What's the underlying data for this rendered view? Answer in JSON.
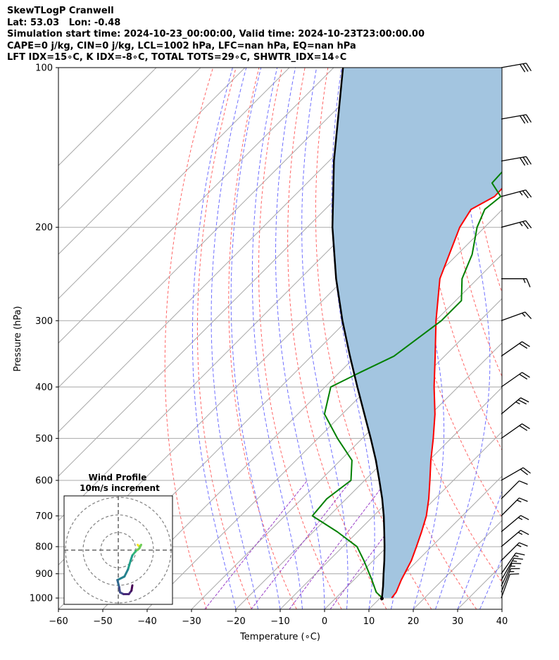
{
  "header": {
    "line1": "SkewTLogP Cranwell",
    "line2": "Lat: 53.03   Lon: -0.48",
    "line3": "Simulation start time: 2024-10-23_00:00:00, Valid time: 2024-10-23T23:00:00.00",
    "line4": "CAPE=0 j/kg, CIN=0 j/kg, LCL=1002 hPa, LFC=nan hPa, EQ=nan hPa",
    "line5": "LFT IDX=15∘C, K IDX=-8∘C, TOTAL TOTS=29∘C, SHWTR_IDX=14∘C"
  },
  "colors": {
    "temperature": "#ff0000",
    "dewpoint": "#008000",
    "parcel": "#000000",
    "cape_fill": "#a3c5e0",
    "dry_adiabat": "#ff6666",
    "moist_adiabat": "#6f6fff",
    "mixing_ratio": "#9a3fc8",
    "isotherm": "#aaaaaa"
  },
  "chart_data": {
    "type": "line",
    "title": "SkewTLogP Cranwell",
    "xlabel": "Temperature (∘C)",
    "ylabel": "Pressure (hPa)",
    "xlim": [
      -60,
      40
    ],
    "ylim": [
      1050,
      100
    ],
    "y_scale": "log",
    "x_ticks": [
      "−60",
      "−50",
      "−40",
      "−30",
      "−20",
      "−10",
      "0",
      "10",
      "20",
      "30",
      "40"
    ],
    "x_tick_values": [
      -60,
      -50,
      -40,
      -30,
      -20,
      -10,
      0,
      10,
      20,
      30,
      40
    ],
    "y_ticks": [
      "1000",
      "900",
      "800",
      "700",
      "600",
      "500",
      "400",
      "300",
      "200",
      "100"
    ],
    "y_tick_values": [
      1000,
      900,
      800,
      700,
      600,
      500,
      400,
      300,
      200,
      100
    ],
    "grid": true,
    "series": [
      {
        "key": "temperature",
        "pressure": [
          1000,
          975,
          925,
          850,
          800,
          750,
          700,
          650,
          600,
          550,
          500,
          450,
          400,
          350,
          300,
          250,
          200,
          185,
          175,
          150,
          130,
          115,
          100
        ],
        "temperature": [
          12.6,
          12.3,
          10.7,
          8.6,
          6.6,
          4.4,
          1.9,
          -1.4,
          -5.3,
          -9.6,
          -14.0,
          -19.1,
          -25.4,
          -32.1,
          -39.9,
          -48.5,
          -55.6,
          -57.1,
          -54.7,
          -55.2,
          -56.8,
          -57.9,
          -59.1
        ]
      },
      {
        "key": "dewpoint",
        "pressure": [
          1000,
          975,
          925,
          850,
          800,
          750,
          700,
          650,
          600,
          550,
          500,
          450,
          400,
          375,
          350,
          300,
          275,
          250,
          225,
          200,
          185,
          175,
          165,
          145,
          130,
          115,
          100
        ],
        "temperature": [
          10.5,
          7.8,
          4.1,
          -2.1,
          -6.8,
          -14.6,
          -23.8,
          -24.4,
          -23.1,
          -27.4,
          -35.6,
          -44.0,
          -48.7,
          -45.3,
          -41.4,
          -38.7,
          -38.7,
          -43.5,
          -46.7,
          -51.7,
          -54.0,
          -53.3,
          -58.3,
          -58.9,
          -61.5,
          -62.5,
          -64.8
        ]
      },
      {
        "key": "parcel",
        "pressure": [
          1002,
          1000,
          950,
          900,
          850,
          800,
          750,
          700,
          650,
          600,
          550,
          500,
          450,
          400,
          350,
          300,
          250,
          200,
          150,
          100
        ],
        "temperature": [
          10.5,
          10.4,
          8.0,
          5.3,
          2.5,
          -0.6,
          -4.0,
          -7.7,
          -11.9,
          -16.7,
          -22.0,
          -28.1,
          -35.0,
          -42.7,
          -51.3,
          -61.0,
          -71.9,
          -84.3,
          -98.9,
          -117.9
        ]
      }
    ],
    "wind_barbs": {
      "pressure": [
        1000,
        975,
        950,
        925,
        900,
        850,
        800,
        750,
        700,
        650,
        600,
        500,
        450,
        400,
        350,
        300,
        250,
        200,
        175,
        150,
        125,
        100
      ],
      "speed_kt": [
        12,
        14,
        15,
        15,
        16,
        17,
        17,
        16,
        14,
        12,
        18,
        22,
        24,
        22,
        20,
        16,
        16,
        26,
        26,
        28,
        28,
        28
      ],
      "direction_deg": [
        20,
        22,
        25,
        30,
        35,
        45,
        50,
        50,
        45,
        45,
        60,
        55,
        50,
        55,
        55,
        70,
        90,
        75,
        75,
        80,
        80,
        80
      ]
    },
    "hodograph": {
      "title": "Wind Profile",
      "subtitle": "10m/s increment",
      "rings_ms": [
        10,
        20,
        30
      ],
      "u_ms": [
        11,
        11.5,
        12,
        12.5,
        13,
        12,
        10,
        8,
        7,
        5.5,
        3.5,
        -0.5,
        0.5,
        1,
        3,
        6,
        7.5,
        8
      ],
      "v_ms": [
        3,
        2.5,
        2,
        2.5,
        3,
        1,
        -0.5,
        -3,
        -6,
        -11,
        -15,
        -17,
        -21,
        -24,
        -25,
        -25,
        -23,
        -20
      ]
    }
  }
}
